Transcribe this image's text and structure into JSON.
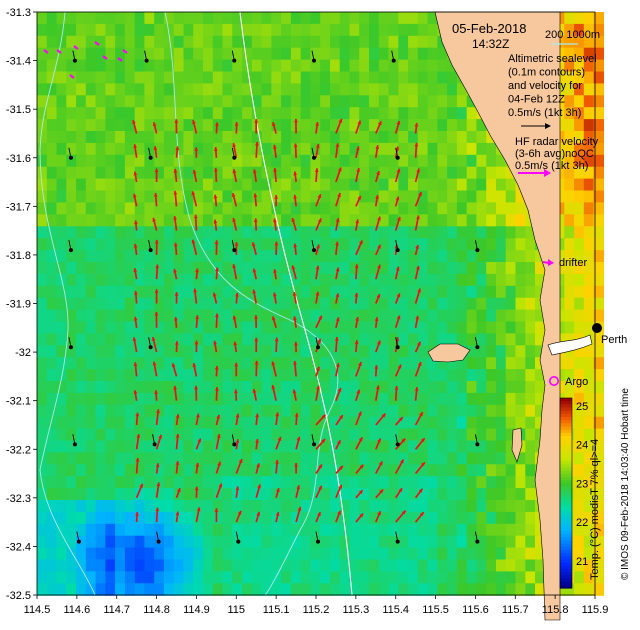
{
  "chart_data": {
    "type": "map",
    "title_date": "05-Feb-2018",
    "title_time": "14:32Z",
    "xlim": [
      114.5,
      115.9
    ],
    "ylim": [
      -32.5,
      -31.3
    ],
    "x_ticks": [
      "114.5",
      "114.6",
      "114.7",
      "114.8",
      "114.9",
      "115",
      "115.1",
      "115.2",
      "115.3",
      "115.4",
      "115.5",
      "115.6",
      "115.7",
      "115.8",
      "115.9"
    ],
    "y_ticks": [
      "-31.3",
      "-31.4",
      "-31.5",
      "-31.6",
      "-31.7",
      "-31.8",
      "-31.9",
      "-32",
      "-32.1",
      "-32.2",
      "-32.3",
      "-32.4",
      "-32.5"
    ],
    "isobath_label": "200  1000m",
    "legend_lines": [
      "Altimetric sealevel",
      "(0.1m contours)",
      "and velocity for",
      "04-Feb 12Z",
      "0.5m/s (1kt 3h)"
    ],
    "radar_lines": [
      "HF radar velocity",
      "(3-6h avg)noQC",
      "0.5m/s (1kt 3h)"
    ],
    "drifter_label": "drifter",
    "city_label": "Perth",
    "argo_label": "Argo",
    "colorbar": {
      "label": "Temp. (°C) modisT 7% ql>=4",
      "min": 20.3,
      "max": 25.2,
      "ticks": [
        "25",
        "24",
        "23",
        "22",
        "21"
      ]
    },
    "credit": "© IMOS 09-Feb-2018 14:03:40 Hobart time",
    "sst_field": {
      "base_temp_c": 22.7,
      "warm_front_lat": -31.72,
      "cool_patch": {
        "lon": 114.75,
        "lat": -32.42,
        "temp_c": 20.9
      },
      "coastal_warm_temp_c": 24.6
    },
    "radar_velocity": {
      "lon_range": [
        114.75,
        115.45
      ],
      "lat_range": [
        -32.35,
        -31.52
      ],
      "spacing_deg": 0.05,
      "dominant_direction": "north",
      "typical_speed_ms": 0.25
    },
    "altimetry_velocity_points": [
      [
        114.59,
        -31.4
      ],
      [
        114.77,
        -31.4
      ],
      [
        114.99,
        -31.4
      ],
      [
        115.19,
        -31.4
      ],
      [
        115.39,
        -31.4
      ],
      [
        114.58,
        -31.6
      ],
      [
        114.78,
        -31.6
      ],
      [
        114.99,
        -31.6
      ],
      [
        115.19,
        -31.6
      ],
      [
        115.4,
        -31.6
      ],
      [
        114.58,
        -31.79
      ],
      [
        114.78,
        -31.79
      ],
      [
        114.99,
        -31.79
      ],
      [
        115.19,
        -31.79
      ],
      [
        115.4,
        -31.79
      ],
      [
        115.6,
        -31.79
      ],
      [
        114.58,
        -31.99
      ],
      [
        114.78,
        -31.99
      ],
      [
        115.2,
        -31.99
      ],
      [
        115.4,
        -31.99
      ],
      [
        115.6,
        -31.99
      ],
      [
        114.59,
        -32.19
      ],
      [
        114.79,
        -32.19
      ],
      [
        114.99,
        -32.19
      ],
      [
        115.19,
        -32.19
      ],
      [
        115.4,
        -32.19
      ],
      [
        115.6,
        -32.19
      ],
      [
        114.6,
        -32.39
      ],
      [
        114.8,
        -32.39
      ],
      [
        115.0,
        -32.39
      ],
      [
        115.2,
        -32.39
      ],
      [
        115.4,
        -32.39
      ],
      [
        115.6,
        -32.39
      ]
    ]
  }
}
